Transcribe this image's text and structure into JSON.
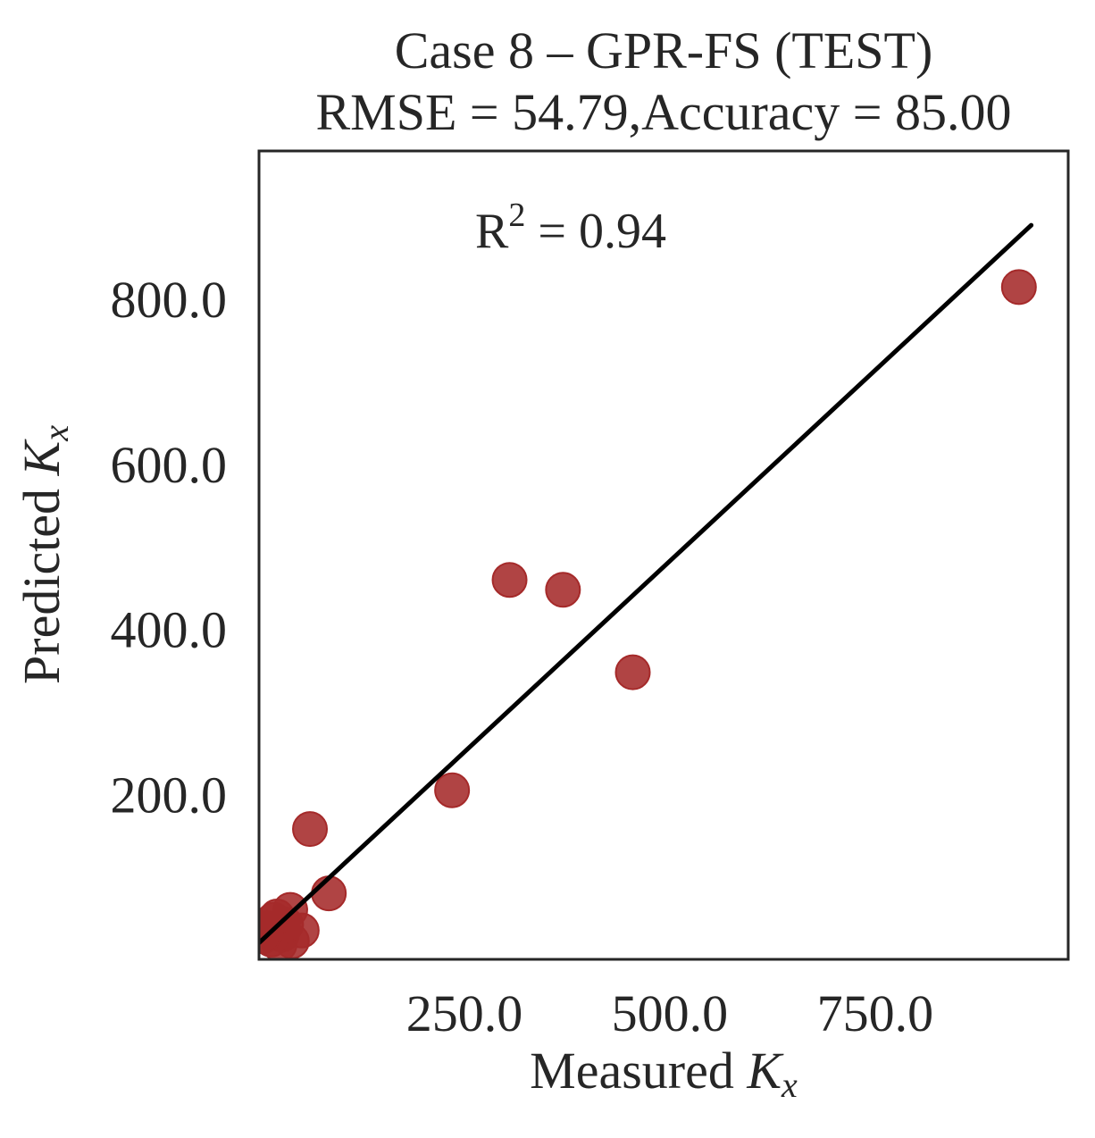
{
  "chart_data": {
    "type": "scatter",
    "title": "Case 8 – GPR-FS (TEST)",
    "subtitle": "RMSE = 54.79,Accuracy = 85.00",
    "xlabel": {
      "prefix": "Measured ",
      "var": "K",
      "sub": "x"
    },
    "ylabel": {
      "prefix": "Predicted ",
      "var": "K",
      "sub": "x"
    },
    "annotation": {
      "base": "R",
      "sup": "2",
      "rest": " = 0.94"
    },
    "xlim": [
      0,
      985
    ],
    "ylim": [
      0,
      980
    ],
    "xticks": [
      250.0,
      500.0,
      750.0
    ],
    "xtick_labels": [
      "250.0",
      "500.0",
      "750.0"
    ],
    "yticks": [
      200.0,
      400.0,
      600.0,
      800.0
    ],
    "ytick_labels": [
      "200.0",
      "400.0",
      "600.0",
      "800.0"
    ],
    "grid": false,
    "point_color": "#a52a2a",
    "line_color": "#000000",
    "fit_line": {
      "x": [
        0,
        940
      ],
      "y": [
        20,
        890
      ]
    },
    "points": [
      {
        "x": 305,
        "y": 460
      },
      {
        "x": 370,
        "y": 448
      },
      {
        "x": 455,
        "y": 348
      },
      {
        "x": 235,
        "y": 205
      },
      {
        "x": 925,
        "y": 815
      },
      {
        "x": 62,
        "y": 158
      },
      {
        "x": 85,
        "y": 80
      },
      {
        "x": 38,
        "y": 60
      },
      {
        "x": 52,
        "y": 35
      },
      {
        "x": 28,
        "y": 30
      },
      {
        "x": 18,
        "y": 48
      },
      {
        "x": 10,
        "y": 38
      },
      {
        "x": 40,
        "y": 22
      },
      {
        "x": 25,
        "y": 18
      },
      {
        "x": 15,
        "y": 24
      },
      {
        "x": 5,
        "y": 28
      },
      {
        "x": 33,
        "y": 42
      },
      {
        "x": 22,
        "y": 52
      }
    ]
  }
}
